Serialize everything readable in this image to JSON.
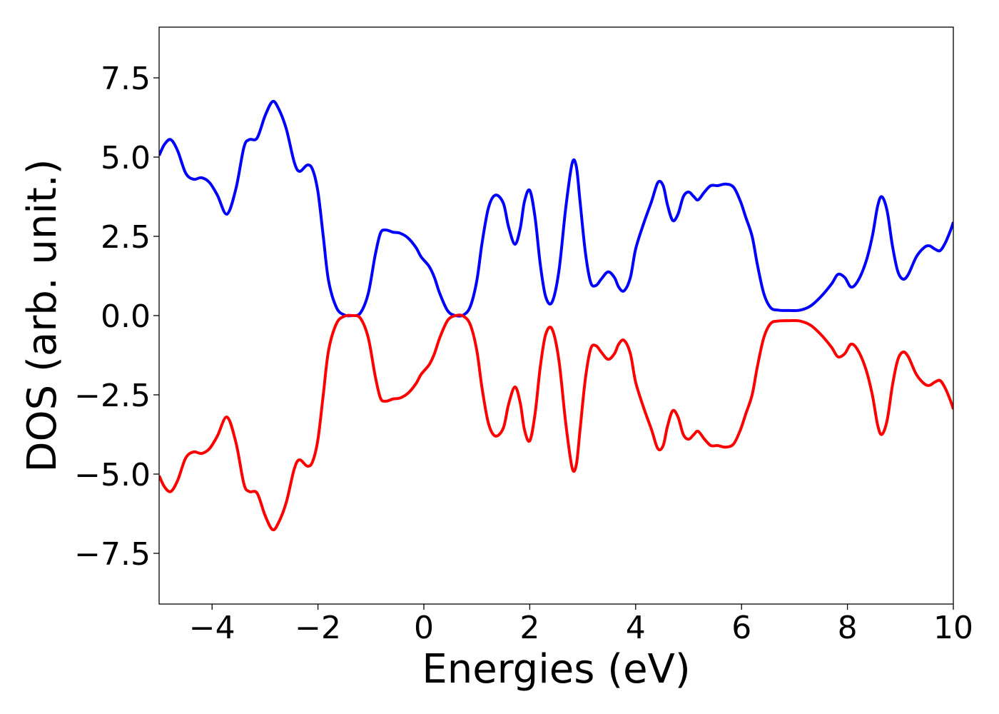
{
  "chart_data": {
    "type": "line",
    "title": "",
    "xlabel": "Energies (eV)",
    "ylabel": "DOS (arb. unit.)",
    "xlim": [
      -5,
      10
    ],
    "ylim": [
      -9.1,
      9.1
    ],
    "grid": false,
    "legend": "none",
    "x_ticks": [
      -4,
      -2,
      0,
      2,
      4,
      6,
      8,
      10
    ],
    "x_tick_labels": [
      "−4",
      "−2",
      "0",
      "2",
      "4",
      "6",
      "8",
      "10"
    ],
    "y_ticks": [
      -7.5,
      -5.0,
      -2.5,
      0.0,
      2.5,
      5.0,
      7.5
    ],
    "y_tick_labels": [
      "−7.5",
      "−5.0",
      "−2.5",
      "0.0",
      "2.5",
      "5.0",
      "7.5"
    ],
    "series": [
      {
        "color": "#0000ff",
        "points": [
          [
            -5.0,
            5.05
          ],
          [
            -4.9,
            5.4
          ],
          [
            -4.78,
            5.55
          ],
          [
            -4.65,
            5.2
          ],
          [
            -4.5,
            4.5
          ],
          [
            -4.35,
            4.3
          ],
          [
            -4.2,
            4.35
          ],
          [
            -4.05,
            4.2
          ],
          [
            -3.9,
            3.8
          ],
          [
            -3.72,
            3.2
          ],
          [
            -3.55,
            4.0
          ],
          [
            -3.4,
            5.3
          ],
          [
            -3.3,
            5.55
          ],
          [
            -3.15,
            5.6
          ],
          [
            -3.0,
            6.3
          ],
          [
            -2.86,
            6.75
          ],
          [
            -2.75,
            6.55
          ],
          [
            -2.6,
            5.9
          ],
          [
            -2.45,
            4.85
          ],
          [
            -2.35,
            4.55
          ],
          [
            -2.2,
            4.75
          ],
          [
            -2.1,
            4.6
          ],
          [
            -2.0,
            3.9
          ],
          [
            -1.9,
            2.5
          ],
          [
            -1.8,
            1.1
          ],
          [
            -1.65,
            0.25
          ],
          [
            -1.5,
            0.02
          ],
          [
            -1.35,
            0.0
          ],
          [
            -1.2,
            0.08
          ],
          [
            -1.05,
            0.7
          ],
          [
            -0.92,
            1.9
          ],
          [
            -0.82,
            2.6
          ],
          [
            -0.72,
            2.7
          ],
          [
            -0.58,
            2.63
          ],
          [
            -0.45,
            2.6
          ],
          [
            -0.3,
            2.45
          ],
          [
            -0.15,
            2.15
          ],
          [
            -0.05,
            1.85
          ],
          [
            0.1,
            1.55
          ],
          [
            0.2,
            1.2
          ],
          [
            0.3,
            0.7
          ],
          [
            0.45,
            0.15
          ],
          [
            0.6,
            0.0
          ],
          [
            0.75,
            0.02
          ],
          [
            0.88,
            0.3
          ],
          [
            1.0,
            1.1
          ],
          [
            1.1,
            2.3
          ],
          [
            1.22,
            3.4
          ],
          [
            1.35,
            3.8
          ],
          [
            1.5,
            3.55
          ],
          [
            1.6,
            2.8
          ],
          [
            1.72,
            2.25
          ],
          [
            1.82,
            2.75
          ],
          [
            1.9,
            3.6
          ],
          [
            2.0,
            3.95
          ],
          [
            2.1,
            3.1
          ],
          [
            2.2,
            1.6
          ],
          [
            2.3,
            0.6
          ],
          [
            2.42,
            0.42
          ],
          [
            2.55,
            1.4
          ],
          [
            2.68,
            3.4
          ],
          [
            2.8,
            4.8
          ],
          [
            2.88,
            4.7
          ],
          [
            2.95,
            3.6
          ],
          [
            3.05,
            2.0
          ],
          [
            3.15,
            1.05
          ],
          [
            3.25,
            0.95
          ],
          [
            3.35,
            1.15
          ],
          [
            3.48,
            1.38
          ],
          [
            3.6,
            1.2
          ],
          [
            3.68,
            0.9
          ],
          [
            3.78,
            0.78
          ],
          [
            3.9,
            1.2
          ],
          [
            4.0,
            2.1
          ],
          [
            4.15,
            2.9
          ],
          [
            4.3,
            3.6
          ],
          [
            4.42,
            4.2
          ],
          [
            4.52,
            4.1
          ],
          [
            4.6,
            3.5
          ],
          [
            4.7,
            3.0
          ],
          [
            4.8,
            3.2
          ],
          [
            4.9,
            3.75
          ],
          [
            5.0,
            3.9
          ],
          [
            5.1,
            3.75
          ],
          [
            5.18,
            3.65
          ],
          [
            5.3,
            3.9
          ],
          [
            5.42,
            4.1
          ],
          [
            5.55,
            4.1
          ],
          [
            5.7,
            4.15
          ],
          [
            5.85,
            4.05
          ],
          [
            5.98,
            3.6
          ],
          [
            6.08,
            3.1
          ],
          [
            6.2,
            2.5
          ],
          [
            6.3,
            1.6
          ],
          [
            6.42,
            0.7
          ],
          [
            6.55,
            0.25
          ],
          [
            6.7,
            0.17
          ],
          [
            6.9,
            0.16
          ],
          [
            7.1,
            0.17
          ],
          [
            7.3,
            0.3
          ],
          [
            7.5,
            0.6
          ],
          [
            7.7,
            1.0
          ],
          [
            7.82,
            1.3
          ],
          [
            7.95,
            1.2
          ],
          [
            8.07,
            0.9
          ],
          [
            8.2,
            1.1
          ],
          [
            8.35,
            1.7
          ],
          [
            8.47,
            2.5
          ],
          [
            8.57,
            3.45
          ],
          [
            8.65,
            3.75
          ],
          [
            8.75,
            3.3
          ],
          [
            8.85,
            2.2
          ],
          [
            8.95,
            1.4
          ],
          [
            9.05,
            1.15
          ],
          [
            9.15,
            1.3
          ],
          [
            9.3,
            1.85
          ],
          [
            9.45,
            2.15
          ],
          [
            9.55,
            2.2
          ],
          [
            9.65,
            2.1
          ],
          [
            9.75,
            2.05
          ],
          [
            9.85,
            2.3
          ],
          [
            9.95,
            2.7
          ],
          [
            10.0,
            2.95
          ]
        ]
      },
      {
        "color": "#ff0000",
        "points": [
          [
            -5.0,
            -5.05
          ],
          [
            -4.9,
            -5.4
          ],
          [
            -4.78,
            -5.55
          ],
          [
            -4.65,
            -5.2
          ],
          [
            -4.5,
            -4.5
          ],
          [
            -4.35,
            -4.3
          ],
          [
            -4.2,
            -4.35
          ],
          [
            -4.05,
            -4.2
          ],
          [
            -3.9,
            -3.8
          ],
          [
            -3.72,
            -3.2
          ],
          [
            -3.55,
            -4.0
          ],
          [
            -3.4,
            -5.3
          ],
          [
            -3.3,
            -5.55
          ],
          [
            -3.15,
            -5.6
          ],
          [
            -3.0,
            -6.3
          ],
          [
            -2.86,
            -6.75
          ],
          [
            -2.75,
            -6.55
          ],
          [
            -2.6,
            -5.9
          ],
          [
            -2.45,
            -4.85
          ],
          [
            -2.35,
            -4.55
          ],
          [
            -2.2,
            -4.75
          ],
          [
            -2.1,
            -4.6
          ],
          [
            -2.0,
            -3.9
          ],
          [
            -1.9,
            -2.5
          ],
          [
            -1.8,
            -1.1
          ],
          [
            -1.65,
            -0.25
          ],
          [
            -1.5,
            -0.02
          ],
          [
            -1.35,
            -0.0
          ],
          [
            -1.2,
            -0.08
          ],
          [
            -1.05,
            -0.7
          ],
          [
            -0.92,
            -1.9
          ],
          [
            -0.82,
            -2.6
          ],
          [
            -0.72,
            -2.7
          ],
          [
            -0.58,
            -2.63
          ],
          [
            -0.45,
            -2.6
          ],
          [
            -0.3,
            -2.45
          ],
          [
            -0.15,
            -2.15
          ],
          [
            -0.05,
            -1.85
          ],
          [
            0.1,
            -1.55
          ],
          [
            0.2,
            -1.2
          ],
          [
            0.3,
            -0.7
          ],
          [
            0.45,
            -0.15
          ],
          [
            0.6,
            -0.0
          ],
          [
            0.75,
            -0.02
          ],
          [
            0.88,
            -0.3
          ],
          [
            1.0,
            -1.1
          ],
          [
            1.1,
            -2.3
          ],
          [
            1.22,
            -3.4
          ],
          [
            1.35,
            -3.8
          ],
          [
            1.5,
            -3.55
          ],
          [
            1.6,
            -2.8
          ],
          [
            1.72,
            -2.25
          ],
          [
            1.82,
            -2.75
          ],
          [
            1.9,
            -3.6
          ],
          [
            2.0,
            -3.95
          ],
          [
            2.1,
            -3.1
          ],
          [
            2.2,
            -1.6
          ],
          [
            2.3,
            -0.6
          ],
          [
            2.42,
            -0.42
          ],
          [
            2.55,
            -1.4
          ],
          [
            2.68,
            -3.4
          ],
          [
            2.8,
            -4.8
          ],
          [
            2.88,
            -4.7
          ],
          [
            2.95,
            -3.6
          ],
          [
            3.05,
            -2.0
          ],
          [
            3.15,
            -1.05
          ],
          [
            3.25,
            -0.95
          ],
          [
            3.35,
            -1.15
          ],
          [
            3.48,
            -1.38
          ],
          [
            3.6,
            -1.2
          ],
          [
            3.68,
            -0.9
          ],
          [
            3.78,
            -0.78
          ],
          [
            3.9,
            -1.2
          ],
          [
            4.0,
            -2.1
          ],
          [
            4.15,
            -2.9
          ],
          [
            4.3,
            -3.6
          ],
          [
            4.42,
            -4.2
          ],
          [
            4.52,
            -4.1
          ],
          [
            4.6,
            -3.5
          ],
          [
            4.7,
            -3.0
          ],
          [
            4.8,
            -3.2
          ],
          [
            4.9,
            -3.75
          ],
          [
            5.0,
            -3.9
          ],
          [
            5.1,
            -3.75
          ],
          [
            5.18,
            -3.65
          ],
          [
            5.3,
            -3.9
          ],
          [
            5.42,
            -4.1
          ],
          [
            5.55,
            -4.1
          ],
          [
            5.7,
            -4.15
          ],
          [
            5.85,
            -4.05
          ],
          [
            5.98,
            -3.6
          ],
          [
            6.08,
            -3.1
          ],
          [
            6.2,
            -2.5
          ],
          [
            6.3,
            -1.6
          ],
          [
            6.42,
            -0.7
          ],
          [
            6.55,
            -0.25
          ],
          [
            6.7,
            -0.17
          ],
          [
            6.9,
            -0.16
          ],
          [
            7.1,
            -0.17
          ],
          [
            7.3,
            -0.3
          ],
          [
            7.5,
            -0.6
          ],
          [
            7.7,
            -1.0
          ],
          [
            7.82,
            -1.3
          ],
          [
            7.95,
            -1.2
          ],
          [
            8.07,
            -0.9
          ],
          [
            8.2,
            -1.1
          ],
          [
            8.35,
            -1.7
          ],
          [
            8.47,
            -2.5
          ],
          [
            8.57,
            -3.45
          ],
          [
            8.65,
            -3.75
          ],
          [
            8.75,
            -3.3
          ],
          [
            8.85,
            -2.2
          ],
          [
            8.95,
            -1.4
          ],
          [
            9.05,
            -1.15
          ],
          [
            9.15,
            -1.3
          ],
          [
            9.3,
            -1.85
          ],
          [
            9.45,
            -2.15
          ],
          [
            9.55,
            -2.2
          ],
          [
            9.65,
            -2.1
          ],
          [
            9.75,
            -2.05
          ],
          [
            9.85,
            -2.3
          ],
          [
            9.95,
            -2.7
          ],
          [
            10.0,
            -2.95
          ]
        ]
      }
    ]
  }
}
